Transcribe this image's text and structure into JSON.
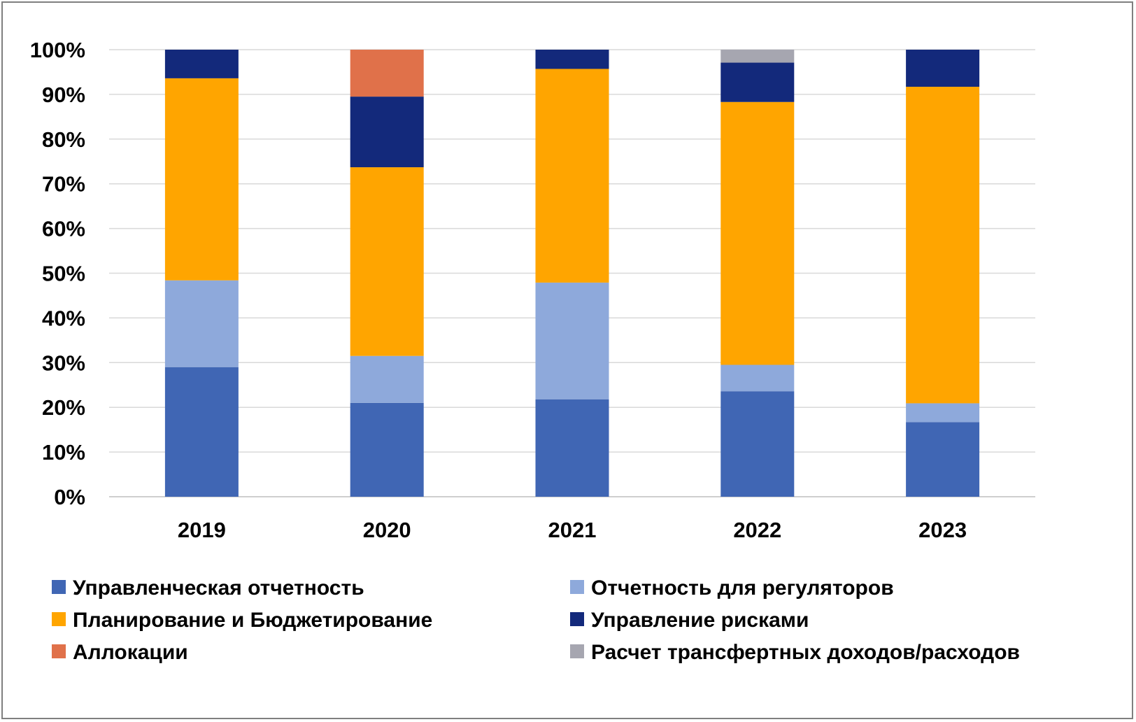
{
  "chart_data": {
    "type": "bar",
    "stacked": true,
    "categories": [
      "2019",
      "2020",
      "2021",
      "2022",
      "2023"
    ],
    "ylim": [
      0,
      100
    ],
    "yticks": [
      "0%",
      "10%",
      "20%",
      "30%",
      "40%",
      "50%",
      "60%",
      "70%",
      "80%",
      "90%",
      "100%"
    ],
    "grid": true,
    "legend_position": "bottom",
    "series": [
      {
        "name": "Управленческая отчетность",
        "color": "#4066b4",
        "values": [
          29.0,
          21.0,
          21.8,
          23.6,
          16.7
        ]
      },
      {
        "name": "Отчетность для регуляторов",
        "color": "#8ea9db",
        "values": [
          19.4,
          10.5,
          26.1,
          5.9,
          4.2
        ]
      },
      {
        "name": "Планирование и Бюджетирование",
        "color": "#ffa500",
        "values": [
          45.2,
          42.2,
          47.8,
          58.8,
          70.8
        ]
      },
      {
        "name": "Управление рисками",
        "color": "#13297b",
        "values": [
          6.4,
          15.8,
          4.3,
          8.8,
          8.3
        ]
      },
      {
        "name": "Аллокации",
        "color": "#e0714a",
        "values": [
          0,
          10.5,
          0,
          0,
          0
        ]
      },
      {
        "name": "Расчет трансфертных доходов/расходов",
        "color": "#a6a6b0",
        "values": [
          0,
          0,
          0,
          2.9,
          0
        ]
      }
    ]
  }
}
